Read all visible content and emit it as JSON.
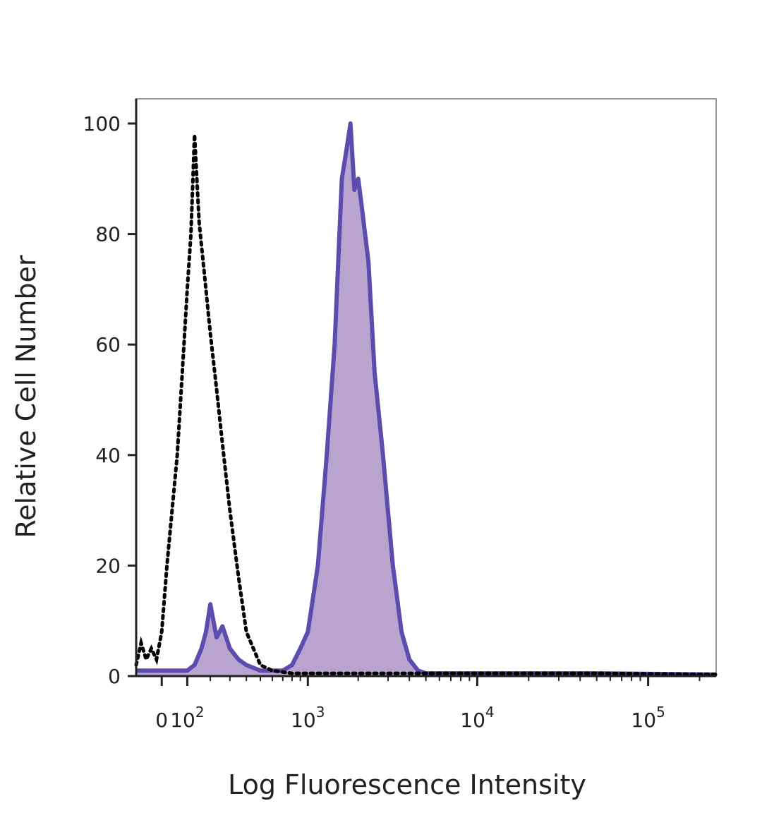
{
  "chart_data": {
    "type": "area",
    "title": "",
    "xlabel": "Log Fluorescence Intensity",
    "ylabel": "Relative Cell Number",
    "x_scale": "biexponential",
    "xlim": [
      -100,
      250000
    ],
    "ylim": [
      0,
      100
    ],
    "grid": false,
    "legend": "none",
    "x_ticks": [
      {
        "value": 0,
        "label": "0",
        "base": "",
        "exp": ""
      },
      {
        "value": 100,
        "label": "10^2",
        "base": "10",
        "exp": "2"
      },
      {
        "value": 1000,
        "label": "10^3",
        "base": "10",
        "exp": "3"
      },
      {
        "value": 10000,
        "label": "10^4",
        "base": "10",
        "exp": "4"
      },
      {
        "value": 100000,
        "label": "10^5",
        "base": "10",
        "exp": "5"
      }
    ],
    "y_ticks": [
      0,
      20,
      40,
      60,
      80,
      100
    ],
    "colors": {
      "stained_line": "#5b4cad",
      "stained_fill": "#b9a3cf",
      "control_line": "#000000"
    },
    "series": [
      {
        "style": "dotted-outline",
        "x": [
          -100,
          -80,
          -60,
          -40,
          -20,
          0,
          20,
          40,
          60,
          80,
          100,
          115,
          130,
          150,
          175,
          200,
          230,
          260,
          300,
          350,
          400,
          500,
          600,
          800,
          1000,
          2000,
          5000,
          10000,
          50000,
          250000
        ],
        "y": [
          2,
          6,
          3,
          5,
          3,
          8,
          20,
          30,
          40,
          55,
          70,
          80,
          98,
          82,
          72,
          62,
          52,
          42,
          30,
          18,
          8,
          2,
          1,
          0.5,
          0.5,
          0.5,
          0.5,
          0.5,
          0.5,
          0.3
        ]
      },
      {
        "style": "filled",
        "x": [
          -100,
          0,
          50,
          100,
          130,
          160,
          180,
          200,
          230,
          260,
          300,
          350,
          400,
          500,
          600,
          700,
          800,
          900,
          1000,
          1150,
          1300,
          1450,
          1600,
          1700,
          1800,
          1900,
          2000,
          2100,
          2300,
          2500,
          2800,
          3200,
          3600,
          4000,
          4500,
          5000,
          6000,
          10000,
          50000,
          250000
        ],
        "y": [
          1,
          1,
          1,
          1,
          2,
          5,
          8,
          13,
          7,
          9,
          5,
          3,
          2,
          1,
          1,
          1,
          2,
          5,
          8,
          20,
          40,
          60,
          90,
          95,
          100,
          88,
          90,
          85,
          75,
          55,
          40,
          20,
          8,
          3,
          1,
          0.5,
          0.5,
          0.5,
          0.5,
          0.3
        ]
      }
    ]
  }
}
